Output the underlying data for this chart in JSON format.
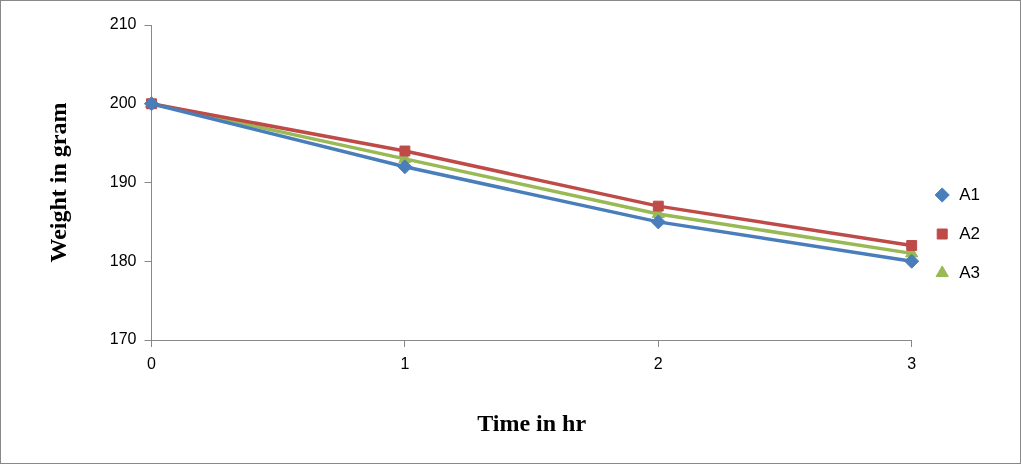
{
  "chart_data": {
    "type": "line",
    "xlabel": "Time in hr",
    "ylabel": "Weight in gram",
    "categories": [
      "0",
      "1",
      "2",
      "3"
    ],
    "series": [
      {
        "name": "A1",
        "color": "#4a7ebb",
        "marker": "diamond",
        "values": [
          200,
          192,
          185,
          180
        ]
      },
      {
        "name": "A2",
        "color": "#be4b48",
        "marker": "square",
        "values": [
          200,
          194,
          187,
          182
        ]
      },
      {
        "name": "A3",
        "color": "#98b954",
        "marker": "triangle",
        "values": [
          200,
          193,
          186,
          181
        ]
      }
    ],
    "ylim": [
      170,
      210
    ],
    "yticks": [
      170,
      180,
      190,
      200,
      210
    ],
    "grid": false,
    "legend": "right",
    "line_style": "solid"
  }
}
